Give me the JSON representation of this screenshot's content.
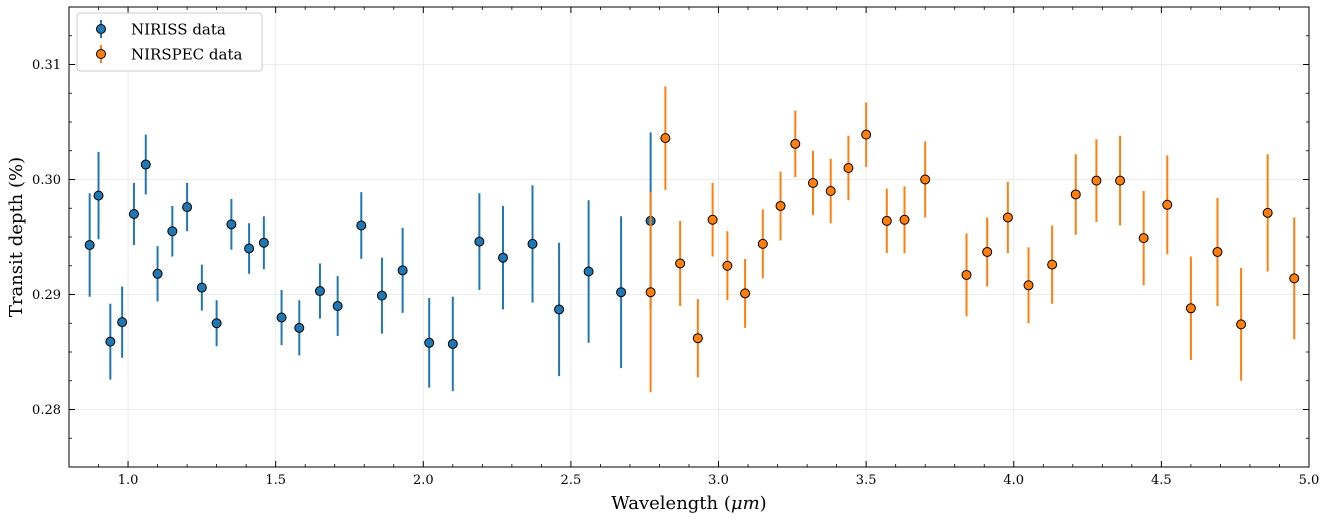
{
  "chart_data": {
    "type": "scatter",
    "xlabel_main": "Wavelength (",
    "xlabel_unit": "μm",
    "xlabel_tail": ")",
    "ylabel": "Transit depth (%)",
    "xlim": [
      0.8,
      5.0
    ],
    "ylim": [
      0.275,
      0.315
    ],
    "x_ticks": [
      1.0,
      1.5,
      2.0,
      2.5,
      3.0,
      3.5,
      4.0,
      4.5,
      5.0
    ],
    "x_tick_labels": [
      "1.0",
      "1.5",
      "2.0",
      "2.5",
      "3.0",
      "3.5",
      "4.0",
      "4.5",
      "5.0"
    ],
    "y_ticks": [
      0.28,
      0.29,
      0.3,
      0.31
    ],
    "y_tick_labels": [
      "0.28",
      "0.29",
      "0.30",
      "0.31"
    ],
    "grid": true,
    "legend_position": "top-left",
    "series": [
      {
        "name": "NIRISS data",
        "color": "#1f77b4",
        "errorbar_color": "#1f77b4",
        "points": [
          {
            "x": 0.87,
            "y": 0.2943,
            "err": 0.0045
          },
          {
            "x": 0.9,
            "y": 0.2986,
            "err": 0.0038
          },
          {
            "x": 0.94,
            "y": 0.2859,
            "err": 0.0033
          },
          {
            "x": 0.98,
            "y": 0.2876,
            "err": 0.0031
          },
          {
            "x": 1.02,
            "y": 0.297,
            "err": 0.0027
          },
          {
            "x": 1.06,
            "y": 0.3013,
            "err": 0.0026
          },
          {
            "x": 1.1,
            "y": 0.2918,
            "err": 0.0024
          },
          {
            "x": 1.15,
            "y": 0.2955,
            "err": 0.0022
          },
          {
            "x": 1.2,
            "y": 0.2976,
            "err": 0.0021
          },
          {
            "x": 1.25,
            "y": 0.2906,
            "err": 0.002
          },
          {
            "x": 1.3,
            "y": 0.2875,
            "err": 0.002
          },
          {
            "x": 1.35,
            "y": 0.2961,
            "err": 0.0022
          },
          {
            "x": 1.41,
            "y": 0.294,
            "err": 0.0022
          },
          {
            "x": 1.46,
            "y": 0.2945,
            "err": 0.0023
          },
          {
            "x": 1.52,
            "y": 0.288,
            "err": 0.0024
          },
          {
            "x": 1.58,
            "y": 0.2871,
            "err": 0.0024
          },
          {
            "x": 1.65,
            "y": 0.2903,
            "err": 0.0024
          },
          {
            "x": 1.71,
            "y": 0.289,
            "err": 0.0026
          },
          {
            "x": 1.79,
            "y": 0.296,
            "err": 0.0029
          },
          {
            "x": 1.86,
            "y": 0.2899,
            "err": 0.0033
          },
          {
            "x": 1.93,
            "y": 0.2921,
            "err": 0.0037
          },
          {
            "x": 2.02,
            "y": 0.2858,
            "err": 0.0039
          },
          {
            "x": 2.1,
            "y": 0.2857,
            "err": 0.0041
          },
          {
            "x": 2.19,
            "y": 0.2946,
            "err": 0.0042
          },
          {
            "x": 2.27,
            "y": 0.2932,
            "err": 0.0045
          },
          {
            "x": 2.37,
            "y": 0.2944,
            "err": 0.0051
          },
          {
            "x": 2.46,
            "y": 0.2887,
            "err": 0.0058
          },
          {
            "x": 2.56,
            "y": 0.292,
            "err": 0.0062
          },
          {
            "x": 2.67,
            "y": 0.2902,
            "err": 0.0066
          },
          {
            "x": 2.77,
            "y": 0.2964,
            "err": 0.0077
          }
        ]
      },
      {
        "name": "NIRSPEC data",
        "color": "#ff7f0e",
        "errorbar_color": "#ff7f0e",
        "points": [
          {
            "x": 2.77,
            "y": 0.2902,
            "err": 0.0087
          },
          {
            "x": 2.82,
            "y": 0.3036,
            "err": 0.0045
          },
          {
            "x": 2.87,
            "y": 0.2927,
            "err": 0.0037
          },
          {
            "x": 2.93,
            "y": 0.2862,
            "err": 0.0034
          },
          {
            "x": 2.98,
            "y": 0.2965,
            "err": 0.0032
          },
          {
            "x": 3.03,
            "y": 0.2925,
            "err": 0.003
          },
          {
            "x": 3.09,
            "y": 0.2901,
            "err": 0.003
          },
          {
            "x": 3.15,
            "y": 0.2944,
            "err": 0.003
          },
          {
            "x": 3.21,
            "y": 0.2977,
            "err": 0.003
          },
          {
            "x": 3.26,
            "y": 0.3031,
            "err": 0.0029
          },
          {
            "x": 3.32,
            "y": 0.2997,
            "err": 0.0028
          },
          {
            "x": 3.38,
            "y": 0.299,
            "err": 0.0028
          },
          {
            "x": 3.44,
            "y": 0.301,
            "err": 0.0028
          },
          {
            "x": 3.5,
            "y": 0.3039,
            "err": 0.0028
          },
          {
            "x": 3.57,
            "y": 0.2964,
            "err": 0.0028
          },
          {
            "x": 3.63,
            "y": 0.2965,
            "err": 0.0029
          },
          {
            "x": 3.7,
            "y": 0.3,
            "err": 0.0033
          },
          {
            "x": 3.84,
            "y": 0.2917,
            "err": 0.0036
          },
          {
            "x": 3.91,
            "y": 0.2937,
            "err": 0.003
          },
          {
            "x": 3.98,
            "y": 0.2967,
            "err": 0.0031
          },
          {
            "x": 4.05,
            "y": 0.2908,
            "err": 0.0033
          },
          {
            "x": 4.13,
            "y": 0.2926,
            "err": 0.0034
          },
          {
            "x": 4.21,
            "y": 0.2987,
            "err": 0.0035
          },
          {
            "x": 4.28,
            "y": 0.2999,
            "err": 0.0036
          },
          {
            "x": 4.36,
            "y": 0.2999,
            "err": 0.0039
          },
          {
            "x": 4.44,
            "y": 0.2949,
            "err": 0.0041
          },
          {
            "x": 4.52,
            "y": 0.2978,
            "err": 0.0043
          },
          {
            "x": 4.6,
            "y": 0.2888,
            "err": 0.0045
          },
          {
            "x": 4.69,
            "y": 0.2937,
            "err": 0.0047
          },
          {
            "x": 4.77,
            "y": 0.2874,
            "err": 0.0049
          },
          {
            "x": 4.86,
            "y": 0.2971,
            "err": 0.0051
          },
          {
            "x": 4.95,
            "y": 0.2914,
            "err": 0.0053
          }
        ]
      }
    ]
  }
}
